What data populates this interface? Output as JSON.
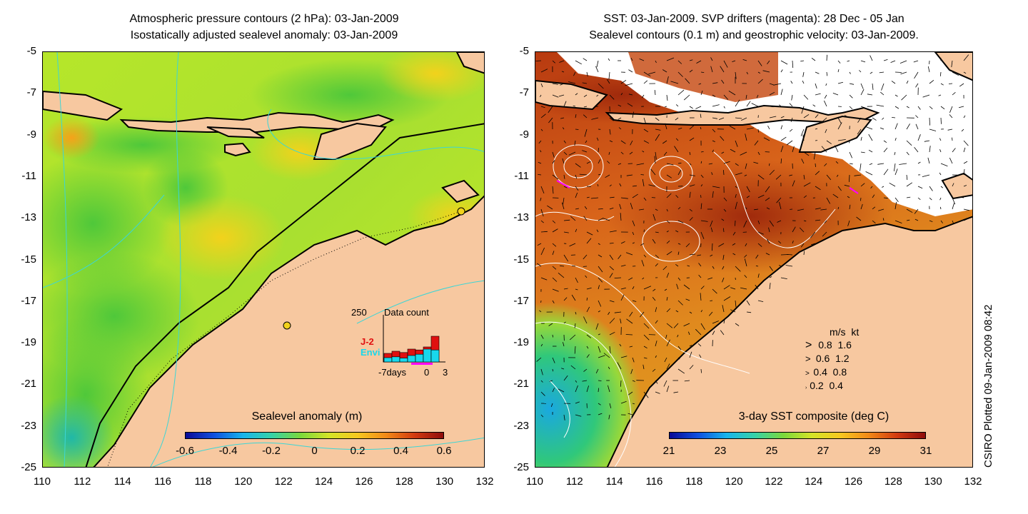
{
  "left_panel": {
    "title_line1": "Atmospheric pressure contours (2 hPa): 03-Jan-2009",
    "title_line2": "Isostatically adjusted sealevel anomaly: 03-Jan-2009",
    "y_ticks": [
      "-5",
      "-7",
      "-9",
      "-11",
      "-13",
      "-15",
      "-17",
      "-19",
      "-21",
      "-23",
      "-25"
    ],
    "x_ticks": [
      "110",
      "112",
      "114",
      "116",
      "118",
      "120",
      "122",
      "124",
      "126",
      "128",
      "130",
      "132"
    ],
    "colorbar_title": "Sealevel anomaly (m)",
    "colorbar_ticks": [
      "-0.6",
      "-0.4",
      "-0.2",
      "0",
      "0.2",
      "0.4",
      "0.6"
    ],
    "inset": {
      "label_count": "250",
      "label_title": "Data count",
      "series_j2": "J-2",
      "series_envi": "Envi",
      "x_left": "-7days",
      "x_mid": "0",
      "x_right": "3",
      "bars_j2": [
        0.2,
        0.25,
        0.22,
        0.3,
        0.28,
        0.35,
        0.6
      ],
      "bars_envi": [
        0.1,
        0.12,
        0.09,
        0.15,
        0.18,
        0.3,
        0.28
      ]
    }
  },
  "right_panel": {
    "title_line1": "SST: 03-Jan-2009. SVP drifters (magenta): 28 Dec - 05 Jan",
    "title_line2": "Sealevel contours (0.1 m) and geostrophic velocity: 03-Jan-2009.",
    "y_ticks": [
      "-5",
      "-7",
      "-9",
      "-11",
      "-13",
      "-15",
      "-17",
      "-19",
      "-21",
      "-23",
      "-25"
    ],
    "x_ticks": [
      "110",
      "112",
      "114",
      "116",
      "118",
      "120",
      "122",
      "124",
      "126",
      "128",
      "130",
      "132"
    ],
    "colorbar_title": "3-day SST composite (deg C)",
    "colorbar_ticks": [
      "21",
      "23",
      "25",
      "27",
      "29",
      "31"
    ],
    "legend": {
      "header_ms": "m/s",
      "header_kt": "kt",
      "rows": [
        {
          "ms": "0.8",
          "kt": "1.6"
        },
        {
          "ms": "0.6",
          "kt": "1.2"
        },
        {
          "ms": "0.4",
          "kt": "0.8"
        },
        {
          "ms": "0.2",
          "kt": "0.4"
        }
      ]
    }
  },
  "credit": "CSIRO Plotted 09-Jan-2009 08:42",
  "colors": {
    "land": "#f7c8a0",
    "coast": "#000000",
    "contour_cyan": "#3cd6d6",
    "contour_white": "#ffffff",
    "j2": "#e01010",
    "envi": "#18d8ec",
    "drifter": "#ff00ff"
  }
}
